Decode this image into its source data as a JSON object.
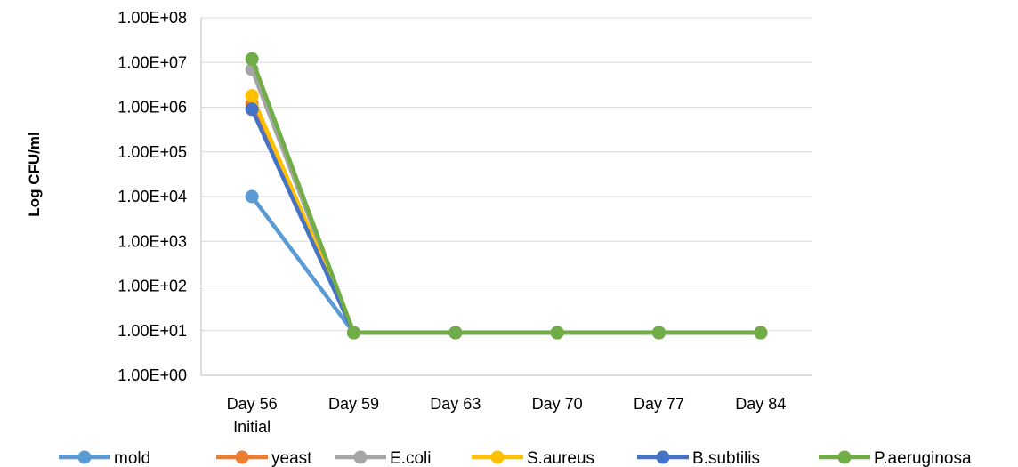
{
  "chart_data": {
    "type": "line",
    "title": "",
    "xlabel": "",
    "ylabel": "Log CFU/ml",
    "yscale": "log",
    "ylim": [
      1,
      100000000
    ],
    "grid": true,
    "legend_position": "bottom",
    "categories": [
      [
        "Day 56",
        "Initial"
      ],
      [
        "Day 59"
      ],
      [
        "Day 63"
      ],
      [
        "Day 70"
      ],
      [
        "Day 77"
      ],
      [
        "Day 84"
      ]
    ],
    "y_tick_labels": [
      "1.00E+00",
      "1.00E+01",
      "1.00E+02",
      "1.00E+03",
      "1.00E+04",
      "1.00E+05",
      "1.00E+06",
      "1.00E+07",
      "1.00E+08"
    ],
    "series": [
      {
        "name": "mold",
        "color": "#5B9BD5",
        "values": [
          10000,
          9,
          9,
          9,
          9,
          9
        ]
      },
      {
        "name": "yeast",
        "color": "#ED7D31",
        "values": [
          1200000,
          9,
          9,
          9,
          9,
          9
        ]
      },
      {
        "name": "E.coli",
        "color": "#A5A5A5",
        "values": [
          7000000,
          9,
          9,
          9,
          9,
          9
        ]
      },
      {
        "name": "S.aureus",
        "color": "#FFC000",
        "values": [
          1800000,
          9,
          9,
          9,
          9,
          9
        ]
      },
      {
        "name": "B.subtilis",
        "color": "#4472C4",
        "values": [
          900000,
          9,
          9,
          9,
          9,
          9
        ]
      },
      {
        "name": "P.aeruginosa",
        "color": "#70AD47",
        "values": [
          12000000,
          9,
          9,
          9,
          9,
          9
        ]
      }
    ]
  }
}
